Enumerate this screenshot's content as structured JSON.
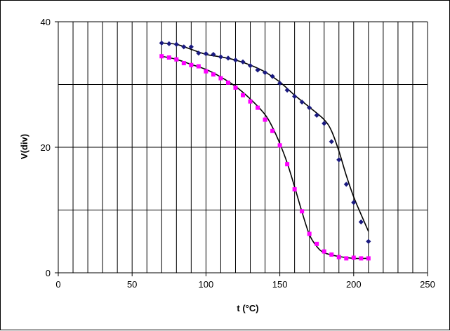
{
  "chart_data": {
    "type": "scatter",
    "title": "",
    "xlabel": "t (°C)",
    "ylabel": "V(div)",
    "xlim": [
      0,
      250
    ],
    "ylim": [
      0,
      40
    ],
    "x_ticks": [
      0,
      50,
      100,
      150,
      200,
      250
    ],
    "y_ticks": [
      0,
      20,
      40
    ],
    "x_gridlines": [
      10,
      20,
      30,
      40,
      50,
      60,
      70,
      80,
      90,
      100,
      110,
      120,
      130,
      140,
      150,
      160,
      170,
      180,
      190,
      200,
      210,
      220,
      230,
      240,
      250
    ],
    "y_gridlines": [
      10,
      20,
      30,
      40
    ],
    "grid": true,
    "legend": "none",
    "series": [
      {
        "color": "#1a1a80",
        "marker": "diamond",
        "x": [
          70,
          75,
          80,
          85,
          90,
          95,
          100,
          105,
          110,
          115,
          120,
          125,
          130,
          135,
          140,
          145,
          150,
          155,
          160,
          165,
          170,
          175,
          180,
          185,
          190,
          195,
          200,
          205,
          210
        ],
        "y": [
          36.6,
          36.5,
          36.4,
          36.0,
          36.0,
          35.0,
          34.9,
          34.8,
          34.4,
          34.2,
          33.9,
          33.6,
          33.0,
          32.3,
          31.9,
          31.3,
          30.2,
          29.1,
          28.1,
          27.2,
          26.3,
          25.1,
          23.8,
          20.9,
          18.0,
          14.1,
          11.2,
          8.1,
          5.0
        ],
        "fit": [
          [
            70,
            36.6
          ],
          [
            80,
            36.4
          ],
          [
            90,
            35.6
          ],
          [
            100,
            34.8
          ],
          [
            110,
            34.4
          ],
          [
            120,
            33.9
          ],
          [
            130,
            33.1
          ],
          [
            140,
            32.0
          ],
          [
            150,
            30.4
          ],
          [
            160,
            28.3
          ],
          [
            170,
            26.4
          ],
          [
            180,
            24.4
          ],
          [
            185,
            22.6
          ],
          [
            190,
            19.4
          ],
          [
            195,
            15.5
          ],
          [
            200,
            12.1
          ],
          [
            205,
            9.3
          ],
          [
            210,
            6.6
          ]
        ]
      },
      {
        "color": "#ff00ff",
        "marker": "square",
        "x": [
          70,
          75,
          80,
          85,
          90,
          95,
          100,
          105,
          110,
          115,
          120,
          125,
          130,
          135,
          140,
          145,
          150,
          155,
          160,
          165,
          170,
          175,
          180,
          185,
          190,
          195,
          200,
          205,
          210
        ],
        "y": [
          34.5,
          34.3,
          34.0,
          33.4,
          33.1,
          32.9,
          32.1,
          31.6,
          31.0,
          30.3,
          29.5,
          28.3,
          27.3,
          26.3,
          24.4,
          22.6,
          20.3,
          17.3,
          13.3,
          9.8,
          6.2,
          4.6,
          3.4,
          2.9,
          2.5,
          2.3,
          2.4,
          2.3,
          2.3
        ],
        "fit": [
          [
            70,
            34.5
          ],
          [
            80,
            34.0
          ],
          [
            90,
            33.2
          ],
          [
            100,
            32.4
          ],
          [
            110,
            31.2
          ],
          [
            120,
            29.7
          ],
          [
            130,
            27.7
          ],
          [
            140,
            25.2
          ],
          [
            145,
            23.2
          ],
          [
            150,
            20.6
          ],
          [
            155,
            17.5
          ],
          [
            160,
            13.7
          ],
          [
            165,
            9.7
          ],
          [
            170,
            6.1
          ],
          [
            175,
            4.2
          ],
          [
            180,
            3.2
          ],
          [
            190,
            2.6
          ],
          [
            200,
            2.3
          ],
          [
            210,
            2.3
          ]
        ]
      }
    ]
  }
}
